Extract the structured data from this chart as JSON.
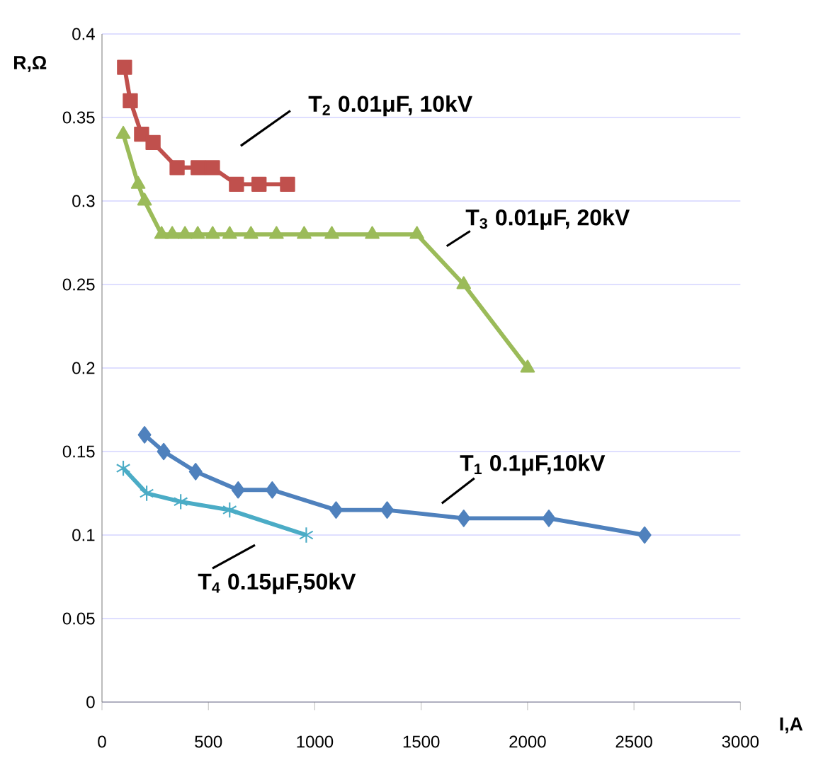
{
  "chart_data": {
    "type": "line",
    "xlabel": "I,A",
    "ylabel": "R,Ω",
    "xlim": [
      0,
      3000
    ],
    "xticks": [
      0,
      500,
      1000,
      1500,
      2000,
      2500,
      3000
    ],
    "ylim": [
      0,
      0.4
    ],
    "yticks": [
      0,
      0.05,
      0.1,
      0.15,
      0.2,
      0.25,
      0.3,
      0.35,
      0.4
    ],
    "grid": "y",
    "legend": false,
    "line_style": "solid",
    "series": [
      {
        "name": "T$_{1}$  0.1μF,10kV",
        "color": "#4f81bd",
        "marker": "diamond",
        "x": [
          200,
          290,
          440,
          640,
          800,
          1100,
          1340,
          1700,
          2100,
          2550
        ],
        "values": [
          0.16,
          0.15,
          0.138,
          0.127,
          0.127,
          0.115,
          0.115,
          0.11,
          0.11,
          0.1
        ]
      },
      {
        "name": "T$_{2}$  0.01μF, 10kV",
        "color": "#c0504d",
        "marker": "square",
        "x": [
          106,
          133,
          186,
          240,
          353,
          452,
          519,
          632,
          738,
          872
        ],
        "values": [
          0.38,
          0.36,
          0.34,
          0.335,
          0.32,
          0.32,
          0.32,
          0.31,
          0.31,
          0.31
        ]
      },
      {
        "name": "T$_{3}$  0.01μF, 20kV",
        "color": "#9bbb59",
        "marker": "triangle",
        "x": [
          100,
          170,
          200,
          280,
          330,
          390,
          450,
          520,
          600,
          700,
          820,
          950,
          1080,
          1270,
          1480,
          1700,
          2000
        ],
        "values": [
          0.34,
          0.31,
          0.3,
          0.28,
          0.28,
          0.28,
          0.28,
          0.28,
          0.28,
          0.28,
          0.28,
          0.28,
          0.28,
          0.28,
          0.28,
          0.25,
          0.2
        ]
      },
      {
        "name": "T$_{4}$  0.15μF,50kV",
        "color": "#4bacc6",
        "marker": "cross",
        "x": [
          100,
          210,
          370,
          600,
          960
        ],
        "values": [
          0.14,
          0.125,
          0.12,
          0.115,
          0.1
        ]
      }
    ]
  }
}
